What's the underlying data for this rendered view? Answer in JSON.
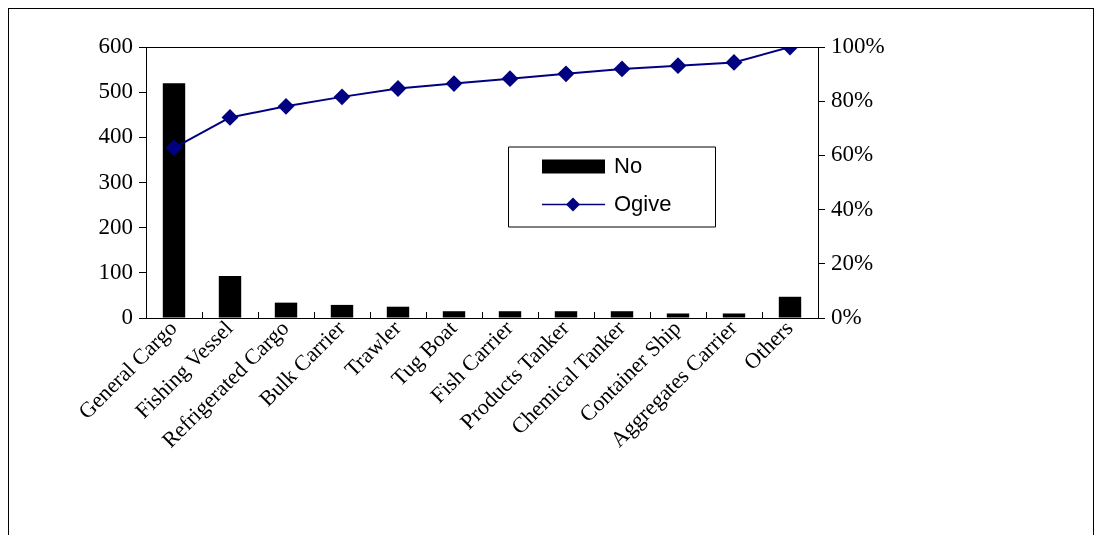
{
  "chart_data": {
    "type": "bar",
    "categories": [
      "General Cargo",
      "Fishing Vessel",
      "Refrigerated Cargo",
      "Bulk Carrier",
      "Trawler",
      "Tug Boat",
      "Fish Carrier",
      "Products Tanker",
      "Chemical Tanker",
      "Container Ship",
      "Aggregates Carrier",
      "Others"
    ],
    "series": [
      {
        "name": "No",
        "color": "#000000",
        "values": [
          520,
          93,
          34,
          29,
          25,
          15,
          15,
          15,
          15,
          10,
          10,
          47
        ]
      },
      {
        "name": "Ogive",
        "type": "line",
        "axis": "y2",
        "color": "#000080",
        "values": [
          62.8,
          74.0,
          78.1,
          81.6,
          84.7,
          86.5,
          88.3,
          90.1,
          91.9,
          93.1,
          94.3,
          100
        ]
      }
    ],
    "ylim": [
      0,
      600
    ],
    "yticks": [
      0,
      100,
      200,
      300,
      400,
      500,
      600
    ],
    "y2lim": [
      0,
      100
    ],
    "y2ticks": [
      {
        "value": 0,
        "label": "0%"
      },
      {
        "value": 20,
        "label": "20%"
      },
      {
        "value": 40,
        "label": "40%"
      },
      {
        "value": 60,
        "label": "60%"
      },
      {
        "value": 80,
        "label": "80%"
      },
      {
        "value": 100,
        "label": "100%"
      }
    ],
    "grid": false,
    "legend": "right",
    "marker": "diamond",
    "line_style": "solid"
  }
}
